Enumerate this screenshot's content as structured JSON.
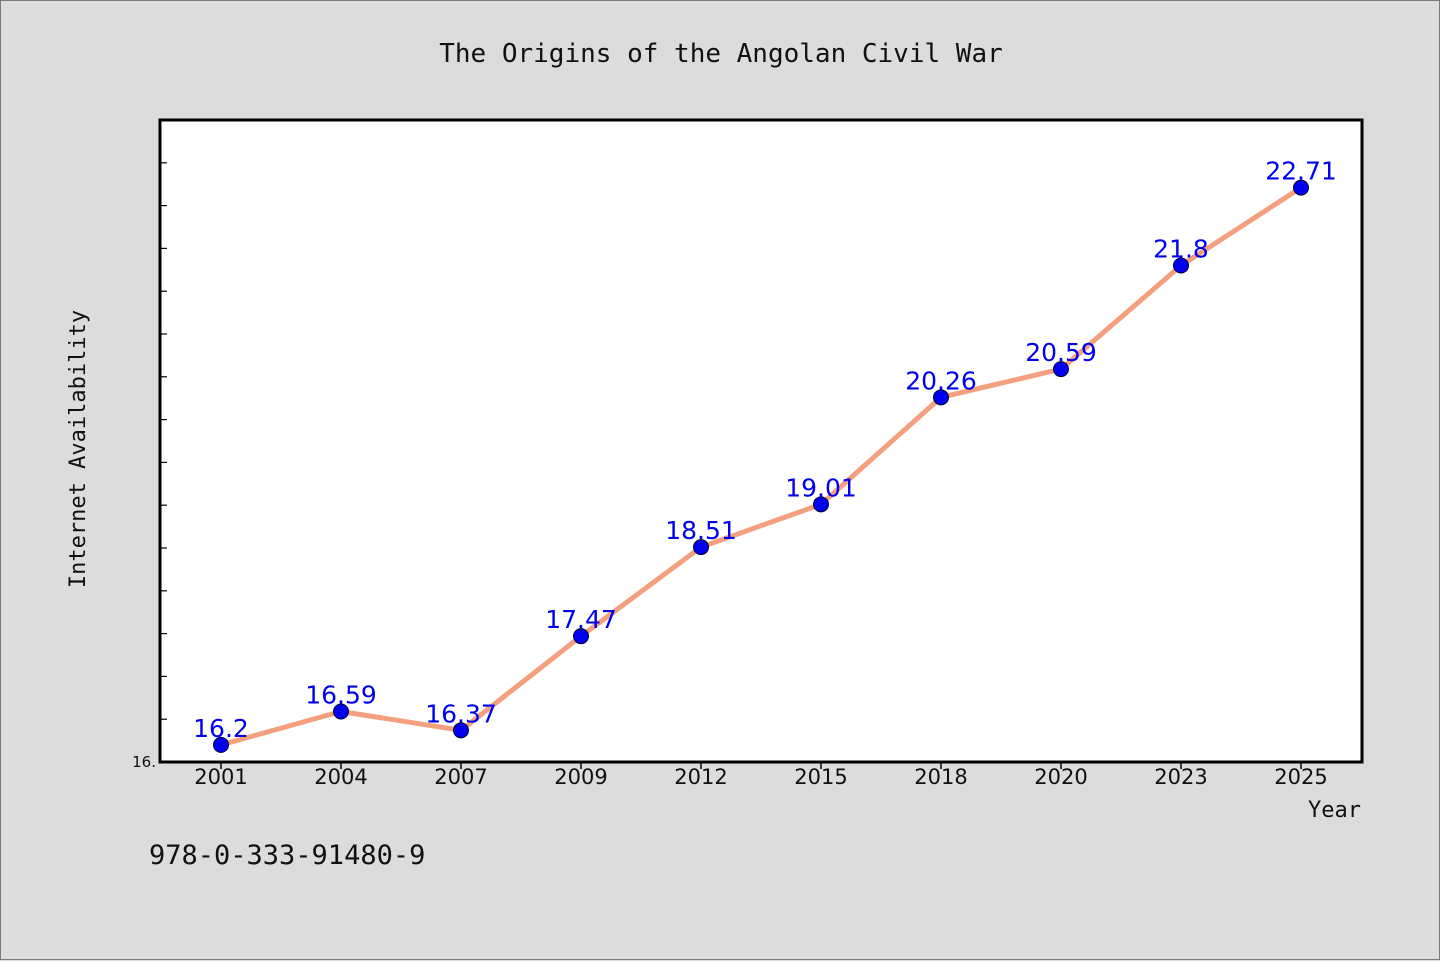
{
  "chart_data": {
    "type": "line",
    "title": "The Origins of the Angolan Civil War",
    "xlabel": "Year",
    "ylabel": "Internet Availability",
    "categories": [
      "2001",
      "2004",
      "2007",
      "2009",
      "2012",
      "2015",
      "2018",
      "2020",
      "2023",
      "2025"
    ],
    "series": [
      {
        "values": [
          16.2,
          16.59,
          16.37,
          17.47,
          18.51,
          19.01,
          20.26,
          20.59,
          21.8,
          22.71
        ],
        "value_labels": [
          "16.2",
          "16.59",
          "16.37",
          "17.47",
          "18.51",
          "19.01",
          "20.26",
          "20.59",
          "21.8",
          "22.71"
        ],
        "line_color": "#f4a07e",
        "marker_color": "#0000ee"
      }
    ],
    "ylim": [
      16.0,
      23.5
    ],
    "y_tick_label": "16.",
    "grid": false,
    "legend": "none",
    "label_color": "#0000ee"
  },
  "footnote": "978-0-333-91480-9"
}
